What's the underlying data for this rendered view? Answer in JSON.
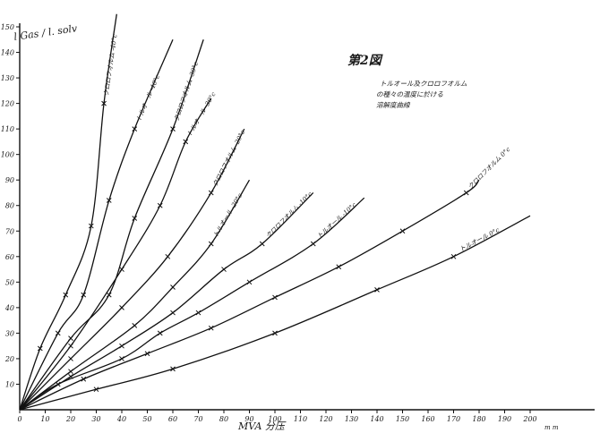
{
  "chart_data": {
    "type": "line",
    "title": "第2図",
    "subtitle": [
      "トルオール及クロロフオルム",
      "の種々の温度に於ける",
      "溶解度曲線"
    ],
    "ylabel": "l Gas / l. solv",
    "xlabel": "MVA 分压",
    "x_unit": "m m",
    "xlim": [
      0,
      200
    ],
    "ylim": [
      0,
      150
    ],
    "x_ticks": [
      0,
      10,
      20,
      30,
      40,
      50,
      60,
      70,
      80,
      90,
      100,
      110,
      120,
      130,
      140,
      150,
      160,
      170,
      180,
      190,
      200
    ],
    "y_ticks": [
      10,
      20,
      30,
      40,
      50,
      60,
      70,
      80,
      90,
      100,
      110,
      120,
      130,
      140,
      150
    ],
    "grid": false,
    "series": [
      {
        "name": "クロロフオルム -40°c",
        "x": [
          0,
          8,
          18,
          28,
          33,
          38
        ],
        "y": [
          0,
          24,
          45,
          72,
          120,
          155
        ]
      },
      {
        "name": "トルオール -40°c",
        "x": [
          0,
          15,
          25,
          35,
          45,
          60
        ],
        "y": [
          0,
          30,
          45,
          82,
          110,
          145
        ]
      },
      {
        "name": "クロロフオルム -30°c",
        "x": [
          0,
          20,
          35,
          45,
          60,
          72
        ],
        "y": [
          0,
          28,
          45,
          75,
          110,
          145
        ]
      },
      {
        "name": "トルオール -30°c",
        "x": [
          0,
          20,
          40,
          55,
          65,
          75
        ],
        "y": [
          0,
          25,
          55,
          80,
          105,
          122
        ]
      },
      {
        "name": "クロロフオルム -20°c",
        "x": [
          0,
          20,
          40,
          58,
          75,
          88
        ],
        "y": [
          0,
          20,
          40,
          60,
          85,
          110
        ]
      },
      {
        "name": "トルオール -20°c",
        "x": [
          0,
          20,
          45,
          60,
          75,
          90
        ],
        "y": [
          0,
          15,
          33,
          48,
          65,
          90
        ]
      },
      {
        "name": "クロロフオルム -10°c",
        "x": [
          0,
          20,
          40,
          60,
          80,
          95,
          115
        ],
        "y": [
          0,
          13,
          25,
          38,
          55,
          65,
          85
        ]
      },
      {
        "name": "トルオール -10°c",
        "x": [
          0,
          15,
          40,
          55,
          70,
          90,
          115,
          135
        ],
        "y": [
          0,
          10,
          20,
          30,
          38,
          50,
          65,
          83
        ]
      },
      {
        "name": "クロロフオルム 0°c",
        "x": [
          0,
          25,
          50,
          75,
          100,
          125,
          150,
          175,
          180
        ],
        "y": [
          0,
          12,
          22,
          32,
          44,
          56,
          70,
          85,
          90
        ]
      },
      {
        "name": "トルオール 0°c",
        "x": [
          0,
          30,
          60,
          100,
          140,
          170,
          200
        ],
        "y": [
          0,
          8,
          16,
          30,
          47,
          60,
          76
        ]
      }
    ]
  }
}
